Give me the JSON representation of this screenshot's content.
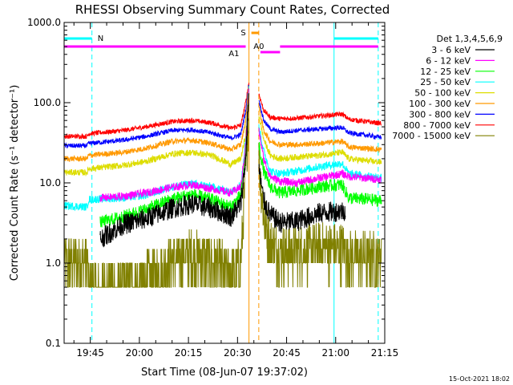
{
  "chart_data": {
    "type": "line",
    "title": "RHESSI Observing Summary Count Rates, Corrected",
    "xlabel": "Start Time (08-Jun-07 19:37:02)",
    "ylabel": "Corrected Count Rate (s⁻¹ detector⁻¹)",
    "y_scale": "log",
    "ylim": [
      0.1,
      1000
    ],
    "xlim": [
      37,
      135
    ],
    "x_units": "minutes after 19:00 UT",
    "x_ticks": [
      {
        "t": 45,
        "label": "19:45"
      },
      {
        "t": 60,
        "label": "20:00"
      },
      {
        "t": 75,
        "label": "20:15"
      },
      {
        "t": 90,
        "label": "20:30"
      },
      {
        "t": 105,
        "label": "20:45"
      },
      {
        "t": 120,
        "label": "21:00"
      },
      {
        "t": 135,
        "label": "21:15"
      }
    ],
    "y_ticks": [
      {
        "v": 0.1,
        "label": "0.1"
      },
      {
        "v": 1,
        "label": "1.0"
      },
      {
        "v": 10,
        "label": "10.0"
      },
      {
        "v": 100,
        "label": "100.0"
      },
      {
        "v": 1000,
        "label": "1000.0"
      }
    ],
    "legend_header": "Det 1,3,4,5,6,9",
    "legend_position": "right",
    "series": [
      {
        "name": "3 - 6 keV",
        "color": "#000000",
        "start": 48,
        "end": 123,
        "values": [
          [
            48,
            2.0
          ],
          [
            55,
            3.0
          ],
          [
            62,
            3.6
          ],
          [
            70,
            4.8
          ],
          [
            76,
            5.5
          ],
          [
            82,
            4.8
          ],
          [
            88,
            3.8
          ],
          [
            91,
            5.5
          ],
          [
            92.5,
            20
          ],
          [
            93.5,
            150
          ],
          [
            96.5,
            15
          ],
          [
            98,
            6
          ],
          [
            100,
            4
          ],
          [
            103,
            3.2
          ],
          [
            108,
            3.3
          ],
          [
            115,
            4.2
          ],
          [
            122.5,
            4.5
          ]
        ],
        "noise": 0.13
      },
      {
        "name": "6 - 12 keV",
        "color": "#ff00ff",
        "start": 48,
        "end": 134,
        "values": [
          [
            48,
            6.5
          ],
          [
            55,
            6.8
          ],
          [
            62,
            7.5
          ],
          [
            70,
            8.8
          ],
          [
            76,
            9.5
          ],
          [
            82,
            8.5
          ],
          [
            88,
            7.5
          ],
          [
            91,
            9
          ],
          [
            92.5,
            30
          ],
          [
            93.5,
            150
          ],
          [
            96.5,
            45
          ],
          [
            98,
            20
          ],
          [
            100,
            12
          ],
          [
            103,
            10.5
          ],
          [
            108,
            10
          ],
          [
            115,
            11.5
          ],
          [
            122,
            13
          ],
          [
            124,
            12
          ],
          [
            134,
            11
          ]
        ],
        "noise": 0.05
      },
      {
        "name": "12 - 25 keV",
        "color": "#00ff00",
        "start": 48,
        "end": 134,
        "values": [
          [
            48,
            3.2
          ],
          [
            55,
            3.8
          ],
          [
            62,
            4.7
          ],
          [
            70,
            6.3
          ],
          [
            76,
            7.2
          ],
          [
            82,
            6.2
          ],
          [
            88,
            5.0
          ],
          [
            91,
            7
          ],
          [
            92.5,
            25
          ],
          [
            93.5,
            120
          ],
          [
            96.5,
            30
          ],
          [
            98,
            14
          ],
          [
            100,
            9
          ],
          [
            103,
            7.5
          ],
          [
            108,
            8.0
          ],
          [
            115,
            9.0
          ],
          [
            122,
            9.5
          ],
          [
            124,
            6.5
          ],
          [
            134,
            6.0
          ]
        ],
        "noise": 0.08
      },
      {
        "name": "25 - 50 keV",
        "color": "#00ffff",
        "start": 37,
        "end": 134,
        "values": [
          [
            37,
            5.2
          ],
          [
            44,
            5.0
          ],
          [
            44.5,
            6.2
          ],
          [
            55,
            6.5
          ],
          [
            62,
            7.0
          ],
          [
            70,
            9.0
          ],
          [
            76,
            9.8
          ],
          [
            82,
            9.0
          ],
          [
            88,
            7.6
          ],
          [
            91,
            9.5
          ],
          [
            92.5,
            35
          ],
          [
            93.5,
            160
          ],
          [
            96.5,
            50
          ],
          [
            98,
            25
          ],
          [
            100,
            14
          ],
          [
            103,
            13
          ],
          [
            108,
            14
          ],
          [
            115,
            16
          ],
          [
            122,
            17.5
          ],
          [
            124,
            13
          ],
          [
            134,
            11.5
          ]
        ],
        "noise": 0.05
      },
      {
        "name": "50 - 100 keV",
        "color": "#dddd00",
        "start": 37,
        "end": 134,
        "values": [
          [
            37,
            13.5
          ],
          [
            44,
            13.5
          ],
          [
            44.5,
            15
          ],
          [
            55,
            16.5
          ],
          [
            62,
            18.5
          ],
          [
            70,
            23
          ],
          [
            76,
            24
          ],
          [
            82,
            22
          ],
          [
            88,
            17
          ],
          [
            91,
            20
          ],
          [
            92.5,
            40
          ],
          [
            93.5,
            170
          ],
          [
            96.5,
            70
          ],
          [
            98,
            35
          ],
          [
            100,
            22
          ],
          [
            103,
            20
          ],
          [
            108,
            21
          ],
          [
            115,
            22
          ],
          [
            122,
            24
          ],
          [
            124,
            20
          ],
          [
            134,
            18
          ]
        ],
        "noise": 0.04
      },
      {
        "name": "100 - 300 keV",
        "color": "#ff9900",
        "start": 37,
        "end": 134,
        "values": [
          [
            37,
            20
          ],
          [
            44,
            20
          ],
          [
            44.5,
            22
          ],
          [
            55,
            24
          ],
          [
            62,
            27
          ],
          [
            70,
            33
          ],
          [
            76,
            34
          ],
          [
            82,
            31
          ],
          [
            88,
            26
          ],
          [
            91,
            30
          ],
          [
            92.5,
            60
          ],
          [
            93.5,
            170
          ],
          [
            96.5,
            90
          ],
          [
            98,
            45
          ],
          [
            100,
            33
          ],
          [
            103,
            30
          ],
          [
            108,
            30
          ],
          [
            115,
            31
          ],
          [
            122,
            33
          ],
          [
            124,
            28
          ],
          [
            134,
            26
          ]
        ],
        "noise": 0.035
      },
      {
        "name": "300 - 800 keV",
        "color": "#0000ff",
        "start": 37,
        "end": 134,
        "values": [
          [
            37,
            29
          ],
          [
            44,
            29
          ],
          [
            44.5,
            31
          ],
          [
            55,
            34
          ],
          [
            62,
            38
          ],
          [
            70,
            45
          ],
          [
            76,
            46
          ],
          [
            82,
            42
          ],
          [
            88,
            36
          ],
          [
            91,
            40
          ],
          [
            92.5,
            80
          ],
          [
            93.5,
            170
          ],
          [
            96.5,
            110
          ],
          [
            98,
            60
          ],
          [
            100,
            47
          ],
          [
            103,
            43
          ],
          [
            108,
            45
          ],
          [
            115,
            47
          ],
          [
            122,
            49
          ],
          [
            124,
            42
          ],
          [
            134,
            37
          ]
        ],
        "noise": 0.03
      },
      {
        "name": "800 - 7000 keV",
        "color": "#ff0000",
        "start": 37,
        "end": 134,
        "values": [
          [
            37,
            38
          ],
          [
            44,
            38
          ],
          [
            44.5,
            41
          ],
          [
            55,
            45
          ],
          [
            62,
            50
          ],
          [
            70,
            58
          ],
          [
            76,
            60
          ],
          [
            82,
            56
          ],
          [
            88,
            48
          ],
          [
            91,
            52
          ],
          [
            92.5,
            100
          ],
          [
            93.5,
            180
          ],
          [
            96.5,
            130
          ],
          [
            98,
            80
          ],
          [
            100,
            66
          ],
          [
            103,
            63
          ],
          [
            108,
            64
          ],
          [
            115,
            68
          ],
          [
            122,
            72
          ],
          [
            124,
            62
          ],
          [
            134,
            55
          ]
        ],
        "noise": 0.03
      },
      {
        "name": "7000 - 15000 keV",
        "color": "#808000",
        "start": 37,
        "end": 134,
        "values": [
          [
            37,
            1.0
          ],
          [
            44,
            1.0
          ],
          [
            44.5,
            0.5
          ],
          [
            55,
            0.5
          ],
          [
            62,
            0.55
          ],
          [
            70,
            1.0
          ],
          [
            76,
            1.3
          ],
          [
            82,
            1.0
          ],
          [
            88,
            0.7
          ],
          [
            91,
            0.9
          ],
          [
            92.5,
            15
          ],
          [
            93.5,
            80
          ],
          [
            96.5,
            20
          ],
          [
            98,
            4
          ],
          [
            100,
            1.7
          ],
          [
            103,
            1.4
          ],
          [
            108,
            1.4
          ],
          [
            115,
            1.5
          ],
          [
            122,
            1.5
          ],
          [
            124,
            1.2
          ],
          [
            134,
            1.2
          ]
        ],
        "noise": 0.35,
        "quantized": true
      }
    ],
    "annotations": [
      {
        "label": "N",
        "kind": "night",
        "start": 37,
        "end": 45.5,
        "color": "#00ffff"
      },
      {
        "label": "N",
        "kind": "night",
        "start": 119.5,
        "end": 133,
        "color": "#00ffff"
      },
      {
        "label": "A1",
        "kind": "attenuator",
        "start": 37,
        "end": 103,
        "color": "#ff00ff"
      },
      {
        "label": "A0",
        "kind": "attenuator",
        "start": 103,
        "end": 133,
        "color": "#ff00ff"
      },
      {
        "label": "S",
        "kind": "saa",
        "start": 93.5,
        "end": 96.5,
        "color": "#ff9900"
      }
    ],
    "vertical_markers": [
      {
        "t": 37,
        "color": "#00ffff",
        "style": "solid"
      },
      {
        "t": 45.5,
        "color": "#00ffff",
        "style": "dashed"
      },
      {
        "t": 93.5,
        "color": "#ff9900",
        "style": "solid"
      },
      {
        "t": 96.5,
        "color": "#ff9900",
        "style": "dashed"
      },
      {
        "t": 119.5,
        "color": "#00ffff",
        "style": "solid"
      },
      {
        "t": 133,
        "color": "#00ffff",
        "style": "dashed"
      }
    ]
  },
  "footer_date": "15-Oct-2021 18:02"
}
